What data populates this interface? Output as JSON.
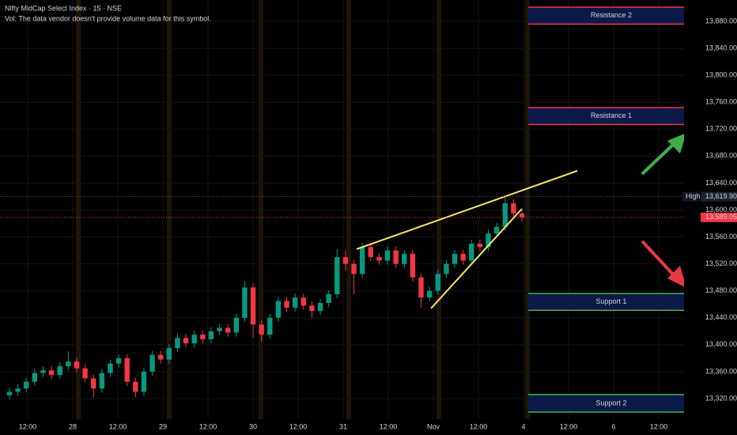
{
  "chart_data": {
    "type": "candlestick",
    "title": "Nifty MidCap Select Index · 15 · NSE",
    "subtitle": "Vol: The data vendor doesn't provide volume data for this symbol.",
    "up_color": "#089981",
    "down_color": "#f23645",
    "grid": true,
    "ylim": [
      13300,
      13900
    ],
    "yticks": [
      {
        "value": 13320,
        "label": "13,320.00"
      },
      {
        "value": 13360,
        "label": "13,360.00"
      },
      {
        "value": 13400,
        "label": "13,400.00"
      },
      {
        "value": 13440,
        "label": "13,440.00"
      },
      {
        "value": 13480,
        "label": "13,480.00"
      },
      {
        "value": 13520,
        "label": "13,520.00"
      },
      {
        "value": 13560,
        "label": "13,560.00"
      },
      {
        "value": 13600,
        "label": "13,600.00"
      },
      {
        "value": 13640,
        "label": "13,640.00"
      },
      {
        "value": 13680,
        "label": "13,680.00"
      },
      {
        "value": 13720,
        "label": "13,720.00"
      },
      {
        "value": 13760,
        "label": "13,760.00"
      },
      {
        "value": 13800,
        "label": "13,800.00"
      },
      {
        "value": 13840,
        "label": "13,840.00"
      },
      {
        "value": 13880,
        "label": "13,880.00"
      }
    ],
    "x_labels": [
      "12:00",
      "28",
      "12:00",
      "29",
      "12:00",
      "30",
      "12:00",
      "31",
      "12:00",
      "Nov",
      "12:00",
      "4",
      "12:00",
      "6",
      "12:00"
    ],
    "open": [
      13325,
      13330,
      13335,
      13345,
      13358,
      13362,
      13355,
      13368,
      13375,
      13365,
      13350,
      13335,
      13358,
      13372,
      13380,
      13345,
      13330,
      13360,
      13385,
      13378,
      13395,
      13410,
      13402,
      13415,
      13408,
      13420,
      13425,
      13418,
      13440,
      13485,
      13430,
      13415,
      13440,
      13465,
      13455,
      13470,
      13458,
      13450,
      13462,
      13475,
      13530,
      13520,
      13505,
      13545,
      13530,
      13525,
      13540,
      13520,
      13535,
      13500,
      13470,
      13480,
      13505,
      13520,
      13535,
      13525,
      13550,
      13545,
      13565,
      13575,
      13610,
      13595
    ],
    "high": [
      13336,
      13341,
      13351,
      13364,
      13368,
      13368,
      13374,
      13390,
      13381,
      13371,
      13356,
      13364,
      13378,
      13386,
      13386,
      13351,
      13366,
      13391,
      13391,
      13401,
      13416,
      13416,
      13421,
      13421,
      13426,
      13431,
      13431,
      13446,
      13495,
      13491,
      13436,
      13446,
      13471,
      13471,
      13476,
      13476,
      13464,
      13468,
      13481,
      13542,
      13540,
      13526,
      13551,
      13551,
      13536,
      13546,
      13546,
      13541,
      13541,
      13506,
      13486,
      13511,
      13526,
      13541,
      13541,
      13556,
      13556,
      13571,
      13581,
      13619.9,
      13616,
      13601
    ],
    "low": [
      13319,
      13324,
      13329,
      13339,
      13352,
      13349,
      13349,
      13362,
      13359,
      13344,
      13322,
      13329,
      13352,
      13366,
      13339,
      13322,
      13324,
      13354,
      13372,
      13372,
      13389,
      13396,
      13396,
      13402,
      13402,
      13414,
      13412,
      13412,
      13434,
      13410,
      13405,
      13409,
      13434,
      13449,
      13449,
      13452,
      13440,
      13444,
      13456,
      13469,
      13510,
      13475,
      13499,
      13524,
      13519,
      13519,
      13514,
      13514,
      13494,
      13455,
      13464,
      13474,
      13499,
      13514,
      13519,
      13519,
      13539,
      13539,
      13559,
      13569,
      13589,
      13583
    ],
    "close": [
      13330,
      13335,
      13345,
      13358,
      13362,
      13355,
      13368,
      13375,
      13365,
      13350,
      13335,
      13358,
      13372,
      13380,
      13345,
      13330,
      13360,
      13385,
      13378,
      13395,
      13410,
      13402,
      13415,
      13408,
      13420,
      13425,
      13418,
      13440,
      13485,
      13430,
      13415,
      13440,
      13465,
      13455,
      13470,
      13458,
      13450,
      13462,
      13475,
      13530,
      13520,
      13505,
      13545,
      13530,
      13525,
      13540,
      13520,
      13535,
      13500,
      13470,
      13480,
      13505,
      13520,
      13535,
      13525,
      13550,
      13545,
      13565,
      13575,
      13610,
      13595,
      13589.05
    ],
    "zones": [
      {
        "name": "Resistance 2",
        "top": 13901,
        "bottom": 13876,
        "color": "#f23645"
      },
      {
        "name": "Resistance 1",
        "top": 13752,
        "bottom": 13727,
        "color": "#f23645"
      },
      {
        "name": "Support 1",
        "top": 13476,
        "bottom": 13451,
        "color": "#4caf50"
      },
      {
        "name": "Support 2",
        "top": 13326,
        "bottom": 13300,
        "color": "#4caf50"
      }
    ],
    "high_marker": {
      "label": "High",
      "value": 13619.9,
      "value_label": "13,619.90"
    },
    "last_price": {
      "value": 13589.05,
      "value_label": "13,589.05"
    }
  }
}
